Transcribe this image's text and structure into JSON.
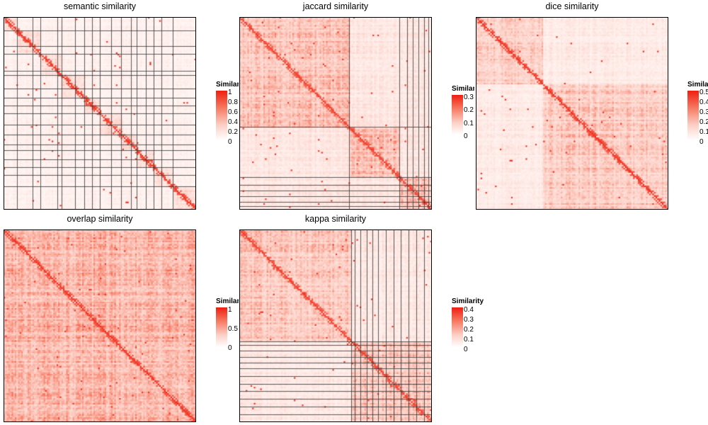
{
  "legend_title": "Similarity",
  "chart_data": [
    {
      "type": "heatmap",
      "title": "semantic similarity",
      "value_range": [
        0,
        1
      ],
      "legend_ticks": [
        "1",
        "0.8",
        "0.6",
        "0.4",
        "0.2",
        "0"
      ],
      "n": 120,
      "base_level": 0.15,
      "diag_level": 0.95,
      "clusters": [
        0.0,
        0.07,
        0.19,
        0.3,
        0.42,
        0.5,
        0.61,
        0.69,
        0.78,
        0.88,
        1.0
      ],
      "grid_splits": [
        0.07,
        0.15,
        0.19,
        0.28,
        0.3,
        0.37,
        0.42,
        0.46,
        0.5,
        0.56,
        0.61,
        0.66,
        0.69,
        0.74,
        0.78,
        0.82,
        0.88
      ]
    },
    {
      "type": "heatmap",
      "title": "jaccard similarity",
      "value_range": [
        0,
        0.35
      ],
      "legend_ticks": [
        "0.3",
        "0.2",
        "0.1",
        "0"
      ],
      "n": 120,
      "base_level": 0.25,
      "diag_level": 0.9,
      "clusters": [
        0.0,
        0.57,
        0.83,
        1.0
      ],
      "grid_splits": [
        0.57,
        0.83,
        0.87,
        0.9,
        0.93,
        0.96,
        0.98
      ]
    },
    {
      "type": "heatmap",
      "title": "dice similarity",
      "value_range": [
        0,
        0.55
      ],
      "legend_ticks": [
        "0.5",
        "0.4",
        "0.3",
        "0.2",
        "0.1",
        "0"
      ],
      "n": 120,
      "base_level": 0.22,
      "diag_level": 0.95,
      "clusters": [
        0.0,
        0.35,
        1.0
      ],
      "grid_splits": []
    },
    {
      "type": "heatmap",
      "title": "overlap similarity",
      "value_range": [
        0,
        1
      ],
      "legend_ticks": [
        "1",
        "0.5",
        "0"
      ],
      "n": 120,
      "base_level": 0.3,
      "diag_level": 0.95,
      "clusters": [
        0.0,
        1.0
      ],
      "grid_splits": []
    },
    {
      "type": "heatmap",
      "title": "kappa similarity",
      "value_range": [
        0,
        0.4
      ],
      "legend_ticks": [
        "0.4",
        "0.3",
        "0.2",
        "0.1",
        "0"
      ],
      "n": 120,
      "base_level": 0.24,
      "diag_level": 0.9,
      "clusters": [
        0.0,
        0.58,
        1.0
      ],
      "grid_splits": [
        0.58,
        0.6,
        0.63,
        0.66,
        0.69,
        0.72,
        0.76,
        0.8,
        0.84,
        0.88,
        0.92,
        0.96
      ]
    }
  ]
}
